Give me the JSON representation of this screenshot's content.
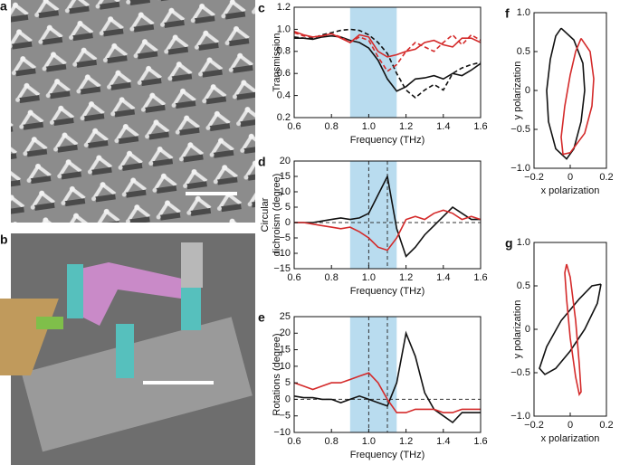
{
  "images": [
    {
      "label": "a"
    },
    {
      "label": "b"
    }
  ],
  "chart_data": [
    {
      "type": "line",
      "panel": "c",
      "xlabel": "Frequency (THz)",
      "ylabel": [
        "Transmission"
      ],
      "x": [
        0.6,
        0.65,
        0.7,
        0.75,
        0.8,
        0.85,
        0.9,
        0.95,
        1.0,
        1.05,
        1.1,
        1.15,
        1.2,
        1.25,
        1.3,
        1.35,
        1.4,
        1.45,
        1.5,
        1.55,
        1.6
      ],
      "xlim": [
        0.6,
        1.6
      ],
      "xticks": [
        0.6,
        0.8,
        {
          "value": 1,
          "label": "1.0"
        },
        1.2,
        1.4,
        1.6
      ],
      "ylim": [
        0.2,
        1.2
      ],
      "yticks": [
        0.2,
        0.4,
        0.6,
        0.8,
        {
          "value": 1,
          "label": "1.0"
        },
        1.2
      ],
      "highlight": [
        0.9,
        1.15
      ],
      "highlight_color": "#b9dcef",
      "series": [
        {
          "color": "#111111",
          "dash": false,
          "values": [
            0.92,
            0.92,
            0.91,
            0.93,
            0.94,
            0.93,
            0.9,
            0.88,
            0.83,
            0.72,
            0.55,
            0.44,
            0.48,
            0.55,
            0.56,
            0.58,
            0.55,
            0.6,
            0.58,
            0.63,
            0.69
          ]
        },
        {
          "color": "#111111",
          "dash": true,
          "values": [
            0.93,
            0.92,
            0.92,
            0.95,
            0.97,
            0.99,
            1.0,
            0.99,
            0.95,
            0.88,
            0.78,
            0.6,
            0.45,
            0.38,
            0.45,
            0.5,
            0.45,
            0.6,
            0.65,
            0.68,
            0.7
          ]
        },
        {
          "color": "#d42a2a",
          "dash": false,
          "values": [
            0.98,
            0.95,
            0.93,
            0.94,
            0.96,
            0.92,
            0.88,
            0.95,
            0.93,
            0.8,
            0.75,
            0.77,
            0.8,
            0.82,
            0.88,
            0.9,
            0.86,
            0.84,
            0.92,
            0.92,
            0.88
          ]
        },
        {
          "color": "#d42a2a",
          "dash": true,
          "values": [
            0.97,
            0.94,
            0.93,
            0.94,
            0.96,
            0.93,
            0.88,
            0.93,
            0.9,
            0.75,
            0.62,
            0.68,
            0.8,
            0.88,
            0.84,
            0.8,
            0.88,
            0.95,
            0.86,
            0.95,
            0.9
          ]
        }
      ]
    },
    {
      "type": "line",
      "panel": "d",
      "xlabel": "Frequency (THz)",
      "ylabel": [
        "Circular",
        "dichroism (degree)"
      ],
      "x": [
        0.6,
        0.65,
        0.7,
        0.75,
        0.8,
        0.85,
        0.9,
        0.95,
        1.0,
        1.05,
        1.1,
        1.15,
        1.2,
        1.25,
        1.3,
        1.35,
        1.4,
        1.45,
        1.5,
        1.55,
        1.6
      ],
      "xlim": [
        0.6,
        1.6
      ],
      "xticks": [
        0.6,
        0.8,
        {
          "value": 1,
          "label": "1.0"
        },
        1.2,
        1.4,
        1.6
      ],
      "ylim": [
        -15,
        20
      ],
      "yticks": [
        {
          "value": -15,
          "label": "−15"
        },
        {
          "value": -10,
          "label": "−10"
        },
        {
          "value": -5,
          "label": "−5"
        },
        0,
        5,
        10,
        15,
        20
      ],
      "highlight": [
        0.9,
        1.15
      ],
      "highlight_color": "#b9dcef",
      "vlines": [
        1,
        1.1
      ],
      "refline": 0,
      "series": [
        {
          "color": "#111111",
          "dash": false,
          "values": [
            0,
            0,
            0,
            0.5,
            1,
            1.5,
            1,
            1.5,
            3,
            9,
            15,
            -2,
            -11,
            -8,
            -4,
            -1,
            2,
            5,
            3,
            1,
            1
          ]
        },
        {
          "color": "#d42a2a",
          "dash": false,
          "values": [
            0,
            0,
            -0.5,
            -1,
            -1.5,
            -2,
            -1.5,
            -3,
            -5,
            -8,
            -9,
            -5,
            1,
            2,
            1,
            3,
            4,
            3,
            1,
            2,
            1
          ]
        }
      ]
    },
    {
      "type": "line",
      "panel": "e",
      "xlabel": "Frequency (THz)",
      "ylabel": [
        "Rotations (degree)"
      ],
      "x": [
        0.6,
        0.65,
        0.7,
        0.75,
        0.8,
        0.85,
        0.9,
        0.95,
        1.0,
        1.05,
        1.1,
        1.15,
        1.2,
        1.25,
        1.3,
        1.35,
        1.4,
        1.45,
        1.5,
        1.55,
        1.6
      ],
      "xlim": [
        0.6,
        1.6
      ],
      "xticks": [
        0.6,
        0.8,
        {
          "value": 1,
          "label": "1.0"
        },
        1.2,
        1.4,
        1.6
      ],
      "ylim": [
        -10,
        25
      ],
      "yticks": [
        {
          "value": -10,
          "label": "−10"
        },
        {
          "value": -5,
          "label": "−5"
        },
        0,
        5,
        10,
        15,
        20,
        25
      ],
      "highlight": [
        0.9,
        1.15
      ],
      "highlight_color": "#b9dcef",
      "vlines": [
        1,
        1.1
      ],
      "refline": 0,
      "series": [
        {
          "color": "#111111",
          "dash": false,
          "values": [
            1,
            0.5,
            0.5,
            0,
            0,
            -1,
            0,
            1,
            0,
            -1,
            -2,
            5,
            20,
            13,
            2,
            -3,
            -5,
            -7,
            -4,
            -4,
            -4
          ]
        },
        {
          "color": "#d42a2a",
          "dash": false,
          "values": [
            5,
            4,
            3,
            4,
            5,
            5,
            6,
            7,
            8,
            5,
            0,
            -4,
            -4,
            -3,
            -3,
            -3,
            -4,
            -4,
            -3,
            -3,
            -3
          ]
        }
      ]
    },
    {
      "type": "line",
      "panel": "f",
      "xlabel": "x polarization",
      "ylabel": [
        "y polarization"
      ],
      "xlim": [
        -0.2,
        0.2
      ],
      "xticks": [
        {
          "value": -0.2,
          "label": "−0.2"
        },
        0,
        0.2
      ],
      "ylim": [
        -1,
        1
      ],
      "yticks": [
        {
          "value": -1,
          "label": "−1.0"
        },
        {
          "value": -0.5,
          "label": "−0.5"
        },
        0,
        0.5,
        {
          "value": 1,
          "label": "1.0"
        }
      ],
      "series": [
        {
          "color": "#111111",
          "dash": false,
          "x": [
            -0.05,
            0.02,
            0.07,
            0.08,
            0.06,
            0.02,
            -0.02,
            -0.08,
            -0.12,
            -0.13,
            -0.11,
            -0.08,
            -0.05
          ],
          "values": [
            0.8,
            0.65,
            0.35,
            0,
            -0.4,
            -0.75,
            -0.88,
            -0.75,
            -0.4,
            0,
            0.4,
            0.7,
            0.8
          ]
        },
        {
          "color": "#d42a2a",
          "dash": false,
          "x": [
            0.06,
            0.11,
            0.13,
            0.12,
            0.08,
            0,
            -0.04,
            -0.05,
            -0.03,
            0,
            0.03,
            0.06
          ],
          "values": [
            0.67,
            0.5,
            0.15,
            -0.2,
            -0.55,
            -0.8,
            -0.82,
            -0.6,
            -0.2,
            0.2,
            0.5,
            0.67
          ]
        }
      ]
    },
    {
      "type": "line",
      "panel": "g",
      "xlabel": "x polarization",
      "ylabel": [
        "y polarization"
      ],
      "xlim": [
        -0.2,
        0.2
      ],
      "xticks": [
        {
          "value": -0.2,
          "label": "−0.2"
        },
        0,
        0.2
      ],
      "ylim": [
        -1,
        1
      ],
      "yticks": [
        {
          "value": -1,
          "label": "−1.0"
        },
        {
          "value": -0.5,
          "label": "−0.5"
        },
        0,
        0.5,
        {
          "value": 1,
          "label": "1.0"
        }
      ],
      "series": [
        {
          "color": "#111111",
          "dash": false,
          "x": [
            0.17,
            0.15,
            0.08,
            0,
            -0.08,
            -0.14,
            -0.17,
            -0.13,
            -0.05,
            0.05,
            0.12,
            0.17
          ],
          "values": [
            0.52,
            0.3,
            0,
            -0.25,
            -0.45,
            -0.52,
            -0.45,
            -0.2,
            0.1,
            0.35,
            0.5,
            0.52
          ]
        },
        {
          "color": "#d42a2a",
          "dash": false,
          "x": [
            -0.02,
            0,
            0.03,
            0.05,
            0.06,
            0.05,
            0.03,
            0,
            -0.02,
            -0.03,
            -0.02
          ],
          "values": [
            0.75,
            0.6,
            0.1,
            -0.4,
            -0.72,
            -0.75,
            -0.55,
            -0.1,
            0.35,
            0.65,
            0.75
          ]
        }
      ]
    }
  ]
}
